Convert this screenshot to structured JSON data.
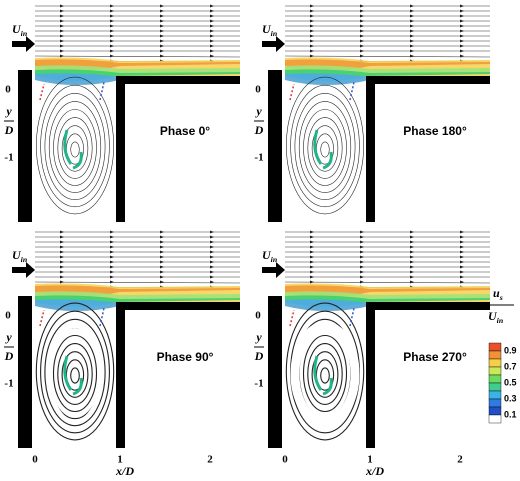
{
  "inlet_label": {
    "main": "U",
    "sub": "in"
  },
  "y_axis_label": {
    "num": "y",
    "den": "D"
  },
  "x_axis_label": "x/D",
  "y_ticks": [
    "0",
    "-1"
  ],
  "x_ticks": [
    "0",
    "1",
    "2"
  ],
  "panels": [
    {
      "phase": "Phase 0°"
    },
    {
      "phase": "Phase 180°"
    },
    {
      "phase": "Phase 90°"
    },
    {
      "phase": "Phase 270°"
    }
  ],
  "colorbar": {
    "title_num": {
      "main": "u",
      "sub": "s"
    },
    "title_den": {
      "main": "U",
      "sub": "in"
    },
    "ticks": [
      "0.9",
      "0.7",
      "0.5",
      "0.3",
      "0.1"
    ]
  }
}
